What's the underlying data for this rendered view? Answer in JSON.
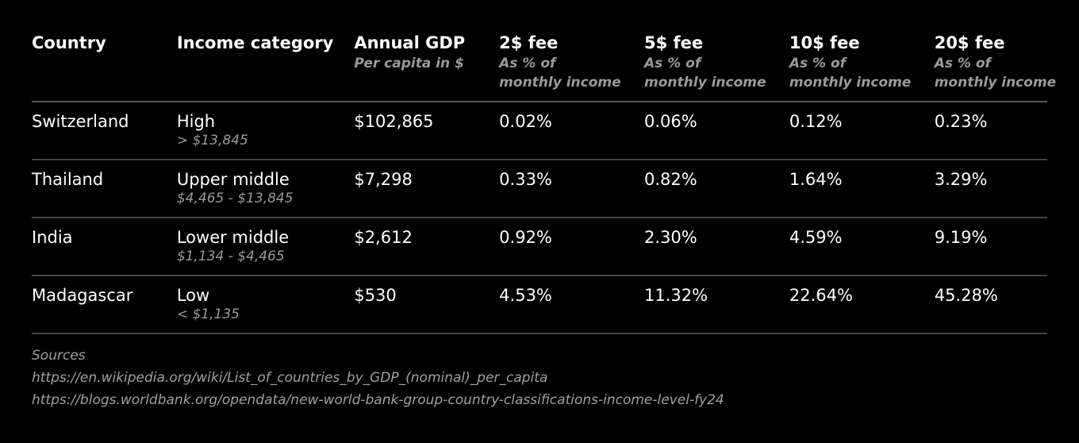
{
  "table": {
    "headers": [
      {
        "title": "Country",
        "sub": []
      },
      {
        "title": "Income category",
        "sub": []
      },
      {
        "title": "Annual GDP",
        "sub": [
          "Per capita in $"
        ]
      },
      {
        "title": "2$ fee",
        "sub": [
          "As % of",
          "monthly income"
        ]
      },
      {
        "title": "5$ fee",
        "sub": [
          "As % of",
          "monthly income"
        ]
      },
      {
        "title": "10$ fee",
        "sub": [
          "As % of",
          "monthly income"
        ]
      },
      {
        "title": "20$ fee",
        "sub": [
          "As % of",
          "monthly income"
        ]
      }
    ],
    "rows": [
      {
        "country": "Switzerland",
        "income": "High",
        "income_range": "> $13,845",
        "gdp": "$102,865",
        "fee2": "0.02%",
        "fee5": "0.06%",
        "fee10": "0.12%",
        "fee20": "0.23%"
      },
      {
        "country": "Thailand",
        "income": "Upper middle",
        "income_range": "$4,465 - $13,845",
        "gdp": "$7,298",
        "fee2": "0.33%",
        "fee5": "0.82%",
        "fee10": "1.64%",
        "fee20": "3.29%"
      },
      {
        "country": "India",
        "income": "Lower middle",
        "income_range": "$1,134 - $4,465",
        "gdp": "$2,612",
        "fee2": "0.92%",
        "fee5": "2.30%",
        "fee10": "4.59%",
        "fee20": "9.19%"
      },
      {
        "country": "Madagascar",
        "income": "Low",
        "income_range": "< $1,135",
        "gdp": "$530",
        "fee2": "4.53%",
        "fee5": "11.32%",
        "fee10": "22.64%",
        "fee20": "45.28%"
      }
    ]
  },
  "sources": {
    "label": "Sources",
    "links": [
      "https://en.wikipedia.org/wiki/List_of_countries_by_GDP_(nominal)_per_capita",
      "https://blogs.worldbank.org/opendata/new-world-bank-group-country-classifications-income-level-fy24"
    ]
  },
  "colors": {
    "background": "#000000",
    "text": "#ffffff",
    "muted": "#9a9a9a",
    "divider": "#555555"
  }
}
